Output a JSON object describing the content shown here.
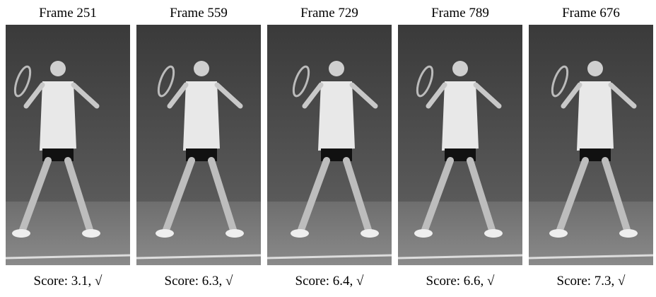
{
  "frames": [
    {
      "title": "Frame 251",
      "score": "Score: 3.1, √"
    },
    {
      "title": "Frame 559",
      "score": "Score: 6.3, √"
    },
    {
      "title": "Frame 729",
      "score": "Score: 6.4, √"
    },
    {
      "title": "Frame 789",
      "score": "Score: 6.6, √"
    },
    {
      "title": "Frame 676",
      "score": "Score: 7.3, √"
    }
  ]
}
